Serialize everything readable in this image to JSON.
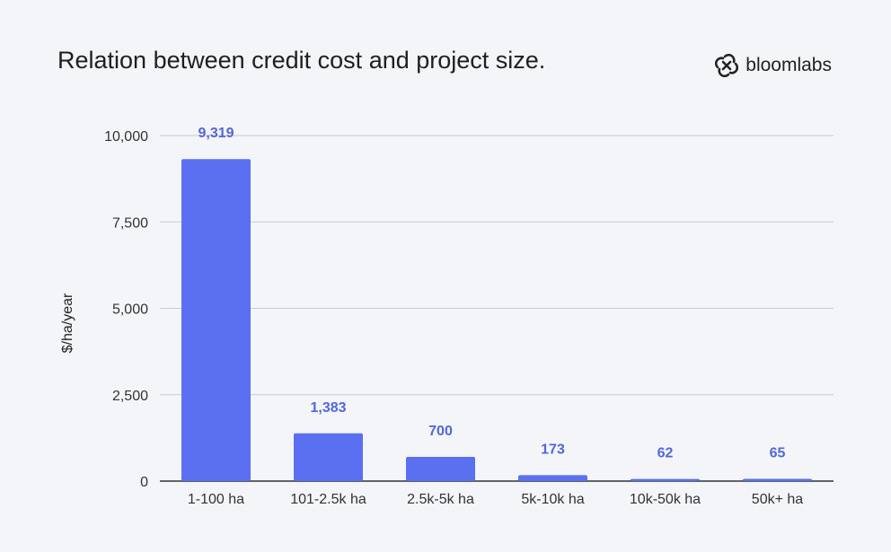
{
  "chart_data": {
    "type": "bar",
    "title": "Relation between credit cost and project size.",
    "xlabel": "",
    "ylabel": "$/ha/year",
    "categories": [
      "1-100 ha",
      "101-2.5k ha",
      "2.5k-5k ha",
      "5k-10k ha",
      "10k-50k ha",
      "50k+ ha"
    ],
    "values": [
      9319,
      1383,
      700,
      173,
      62,
      65
    ],
    "data_labels": [
      "9,319",
      "1,383",
      "700",
      "173",
      "62",
      "65"
    ],
    "ylim": [
      0,
      10000
    ],
    "yticks": [
      0,
      2500,
      5000,
      7500,
      10000
    ],
    "ytick_labels": [
      "0",
      "2,500",
      "5,000",
      "7,500",
      "10,000"
    ],
    "grid": true,
    "bar_color": "#5a70f0",
    "label_color": "#5566d6"
  },
  "brand": {
    "name": "bloomlabs",
    "icon": "bloomlabs-logo-icon"
  }
}
